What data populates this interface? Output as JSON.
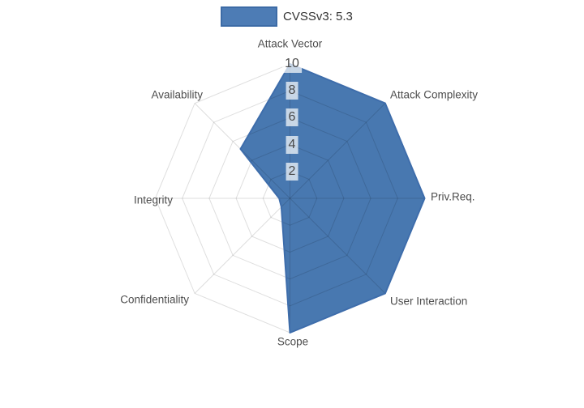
{
  "legend": {
    "label": "CVSSv3: 5.3",
    "position": "top-center"
  },
  "chart_data": {
    "type": "area",
    "subtype": "radar-polar",
    "title": "",
    "categories": [
      "Attack Vector",
      "Attack Complexity",
      "Priv.Req.",
      "User Interaction",
      "Scope",
      "Confidentiality",
      "Integrity",
      "Availability"
    ],
    "series": [
      {
        "name": "CVSSv3: 5.3",
        "values": [
          10,
          10,
          10,
          10,
          10,
          0.9,
          0.8,
          5.2
        ]
      }
    ],
    "radial_ticks": [
      2,
      4,
      6,
      8,
      10
    ],
    "radial_range": [
      0,
      10
    ],
    "grid": "polygon-web",
    "legend_position": "top-center",
    "colors": {
      "fill": "#4878b0",
      "line": "#3e6dab",
      "grid_line": "rgba(0,0,0,0.13)",
      "tick_label_bg": "rgba(255,255,255,0.70)",
      "axis_label_text": "#4d4d4d",
      "tick_text": "#4a4a4a",
      "legend_text": "#333333",
      "background": "#ffffff"
    }
  }
}
